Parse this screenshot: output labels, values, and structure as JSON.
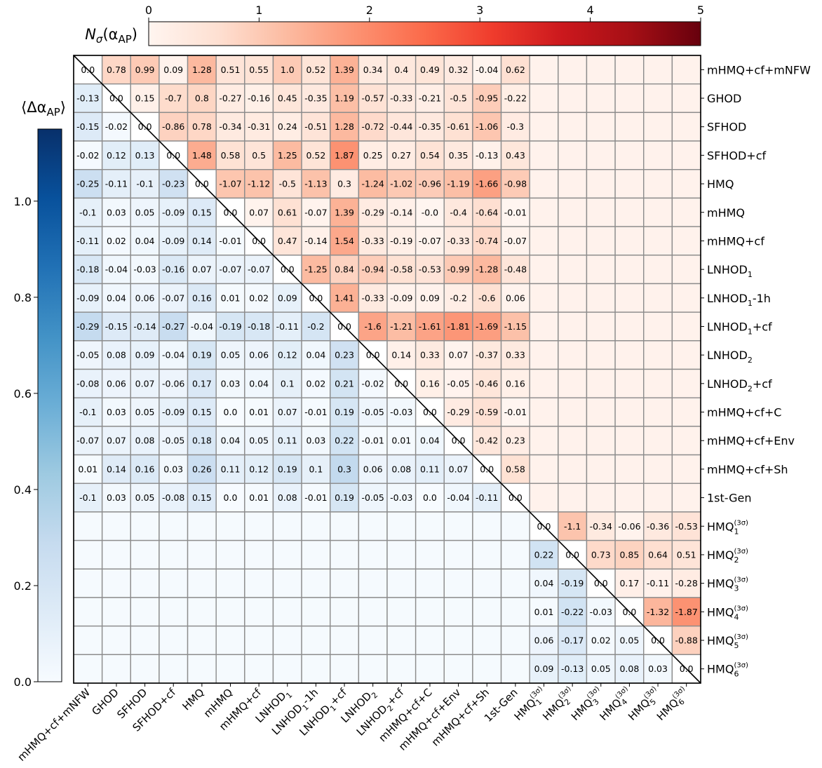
{
  "chart_data": {
    "type": "heatmap",
    "labels": [
      "mHMQ+cf+mNFW",
      "GHOD",
      "SFHOD",
      "SFHOD+cf",
      "HMQ",
      "mHMQ",
      "mHMQ+cf",
      "LNHOD₁",
      "LNHOD₁-1h",
      "LNHOD₁+cf",
      "LNHOD₂",
      "LNHOD₂+cf",
      "mHMQ+cf+C",
      "mHMQ+cf+Env",
      "mHMQ+cf+Sh",
      "1st-Gen",
      "HMQ₁⁽³ᵟ⁾",
      "HMQ₂⁽³ᵟ⁾",
      "HMQ₃⁽³ᵟ⁾",
      "HMQ₄⁽³ᵟ⁾",
      "HMQ₅⁽³ᵟ⁾",
      "HMQ₆⁽³ᵟ⁾"
    ],
    "labels_rich": [
      {
        "base": "mHMQ+cf+mNFW",
        "sub": "",
        "sup": "",
        "suffix": ""
      },
      {
        "base": "GHOD",
        "sub": "",
        "sup": "",
        "suffix": ""
      },
      {
        "base": "SFHOD",
        "sub": "",
        "sup": "",
        "suffix": ""
      },
      {
        "base": "SFHOD+cf",
        "sub": "",
        "sup": "",
        "suffix": ""
      },
      {
        "base": "HMQ",
        "sub": "",
        "sup": "",
        "suffix": ""
      },
      {
        "base": "mHMQ",
        "sub": "",
        "sup": "",
        "suffix": ""
      },
      {
        "base": "mHMQ+cf",
        "sub": "",
        "sup": "",
        "suffix": ""
      },
      {
        "base": "LNHOD",
        "sub": "1",
        "sup": "",
        "suffix": ""
      },
      {
        "base": "LNHOD",
        "sub": "1",
        "sup": "",
        "suffix": "-1h"
      },
      {
        "base": "LNHOD",
        "sub": "1",
        "sup": "",
        "suffix": "+cf"
      },
      {
        "base": "LNHOD",
        "sub": "2",
        "sup": "",
        "suffix": ""
      },
      {
        "base": "LNHOD",
        "sub": "2",
        "sup": "",
        "suffix": "+cf"
      },
      {
        "base": "mHMQ+cf+C",
        "sub": "",
        "sup": "",
        "suffix": ""
      },
      {
        "base": "mHMQ+cf+Env",
        "sub": "",
        "sup": "",
        "suffix": ""
      },
      {
        "base": "mHMQ+cf+Sh",
        "sub": "",
        "sup": "",
        "suffix": ""
      },
      {
        "base": "1st-Gen",
        "sub": "",
        "sup": "",
        "suffix": ""
      },
      {
        "base": "HMQ",
        "sub": "1",
        "sup": "(3σ)",
        "suffix": ""
      },
      {
        "base": "HMQ",
        "sub": "2",
        "sup": "(3σ)",
        "suffix": ""
      },
      {
        "base": "HMQ",
        "sub": "3",
        "sup": "(3σ)",
        "suffix": ""
      },
      {
        "base": "HMQ",
        "sub": "4",
        "sup": "(3σ)",
        "suffix": ""
      },
      {
        "base": "HMQ",
        "sub": "5",
        "sup": "(3σ)",
        "suffix": ""
      },
      {
        "base": "HMQ",
        "sub": "6",
        "sup": "(3σ)",
        "suffix": ""
      }
    ],
    "upper_title": "Nσ(αAP)",
    "upper_title_rich": {
      "base": "N",
      "base_sub": "σ",
      "open": "(α",
      "sub": "AP",
      "close": ")"
    },
    "upper_ticks": [
      0,
      1,
      2,
      3,
      4,
      5
    ],
    "upper_range": [
      0,
      5
    ],
    "upper_colormap": "Reds",
    "lower_title": "⟨ΔαAP⟩",
    "lower_title_rich": {
      "open": "⟨Δα",
      "sub": "AP",
      "close": "⟩"
    },
    "lower_ticks": [
      "0.0",
      "0.2",
      "0.4",
      "0.6",
      "0.8",
      "1.0"
    ],
    "lower_range": [
      0,
      1.15
    ],
    "lower_colormap": "Blues",
    "grid": true,
    "diagonal_line": true,
    "rows": [
      [
        "0.0",
        "0.78",
        "0.99",
        "0.09",
        "1.28",
        "0.51",
        "0.55",
        "1.0",
        "0.52",
        "1.39",
        "0.34",
        "0.4",
        "0.49",
        "0.32",
        "-0.04",
        "0.62",
        "",
        "",
        "",
        "",
        "",
        ""
      ],
      [
        "-0.13",
        "0.0",
        "0.15",
        "-0.7",
        "0.8",
        "-0.27",
        "-0.16",
        "0.45",
        "-0.35",
        "1.19",
        "-0.57",
        "-0.33",
        "-0.21",
        "-0.5",
        "-0.95",
        "-0.22",
        "",
        "",
        "",
        "",
        "",
        ""
      ],
      [
        "-0.15",
        "-0.02",
        "0.0",
        "-0.86",
        "0.78",
        "-0.34",
        "-0.31",
        "0.24",
        "-0.51",
        "1.28",
        "-0.72",
        "-0.44",
        "-0.35",
        "-0.61",
        "-1.06",
        "-0.3",
        "",
        "",
        "",
        "",
        "",
        ""
      ],
      [
        "-0.02",
        "0.12",
        "0.13",
        "0.0",
        "1.48",
        "0.58",
        "0.5",
        "1.25",
        "0.52",
        "1.87",
        "0.25",
        "0.27",
        "0.54",
        "0.35",
        "-0.13",
        "0.43",
        "",
        "",
        "",
        "",
        "",
        ""
      ],
      [
        "-0.25",
        "-0.11",
        "-0.1",
        "-0.23",
        "0.0",
        "-1.07",
        "-1.12",
        "-0.5",
        "-1.13",
        "0.3",
        "-1.24",
        "-1.02",
        "-0.96",
        "-1.19",
        "-1.66",
        "-0.98",
        "",
        "",
        "",
        "",
        "",
        ""
      ],
      [
        "-0.1",
        "0.03",
        "0.05",
        "-0.09",
        "0.15",
        "0.0",
        "0.07",
        "0.61",
        "-0.07",
        "1.39",
        "-0.29",
        "-0.14",
        "-0.0",
        "-0.4",
        "-0.64",
        "-0.01",
        "",
        "",
        "",
        "",
        "",
        ""
      ],
      [
        "-0.11",
        "0.02",
        "0.04",
        "-0.09",
        "0.14",
        "-0.01",
        "0.0",
        "0.47",
        "-0.14",
        "1.54",
        "-0.33",
        "-0.19",
        "-0.07",
        "-0.33",
        "-0.74",
        "-0.07",
        "",
        "",
        "",
        "",
        "",
        ""
      ],
      [
        "-0.18",
        "-0.04",
        "-0.03",
        "-0.16",
        "0.07",
        "-0.07",
        "-0.07",
        "0.0",
        "-1.25",
        "0.84",
        "-0.94",
        "-0.58",
        "-0.53",
        "-0.99",
        "-1.28",
        "-0.48",
        "",
        "",
        "",
        "",
        "",
        ""
      ],
      [
        "-0.09",
        "0.04",
        "0.06",
        "-0.07",
        "0.16",
        "0.01",
        "0.02",
        "0.09",
        "0.0",
        "1.41",
        "-0.33",
        "-0.09",
        "0.09",
        "-0.2",
        "-0.6",
        "0.06",
        "",
        "",
        "",
        "",
        "",
        ""
      ],
      [
        "-0.29",
        "-0.15",
        "-0.14",
        "-0.27",
        "-0.04",
        "-0.19",
        "-0.18",
        "-0.11",
        "-0.2",
        "0.0",
        "-1.6",
        "-1.21",
        "-1.61",
        "-1.81",
        "-1.69",
        "-1.15",
        "",
        "",
        "",
        "",
        "",
        ""
      ],
      [
        "-0.05",
        "0.08",
        "0.09",
        "-0.04",
        "0.19",
        "0.05",
        "0.06",
        "0.12",
        "0.04",
        "0.23",
        "0.0",
        "0.14",
        "0.33",
        "0.07",
        "-0.37",
        "0.33",
        "",
        "",
        "",
        "",
        "",
        ""
      ],
      [
        "-0.08",
        "0.06",
        "0.07",
        "-0.06",
        "0.17",
        "0.03",
        "0.04",
        "0.1",
        "0.02",
        "0.21",
        "-0.02",
        "0.0",
        "0.16",
        "-0.05",
        "-0.46",
        "0.16",
        "",
        "",
        "",
        "",
        "",
        ""
      ],
      [
        "-0.1",
        "0.03",
        "0.05",
        "-0.09",
        "0.15",
        "0.0",
        "0.01",
        "0.07",
        "-0.01",
        "0.19",
        "-0.05",
        "-0.03",
        "0.0",
        "-0.29",
        "-0.59",
        "-0.01",
        "",
        "",
        "",
        "",
        "",
        ""
      ],
      [
        "-0.07",
        "0.07",
        "0.08",
        "-0.05",
        "0.18",
        "0.04",
        "0.05",
        "0.11",
        "0.03",
        "0.22",
        "-0.01",
        "0.01",
        "0.04",
        "0.0",
        "-0.42",
        "0.23",
        "",
        "",
        "",
        "",
        "",
        ""
      ],
      [
        "0.01",
        "0.14",
        "0.16",
        "0.03",
        "0.26",
        "0.11",
        "0.12",
        "0.19",
        "0.1",
        "0.3",
        "0.06",
        "0.08",
        "0.11",
        "0.07",
        "0.0",
        "0.58",
        "",
        "",
        "",
        "",
        "",
        ""
      ],
      [
        "-0.1",
        "0.03",
        "0.05",
        "-0.08",
        "0.15",
        "0.0",
        "0.01",
        "0.08",
        "-0.01",
        "0.19",
        "-0.05",
        "-0.03",
        "0.0",
        "-0.04",
        "-0.11",
        "0.0",
        "",
        "",
        "",
        "",
        "",
        ""
      ],
      [
        "",
        "",
        "",
        "",
        "",
        "",
        "",
        "",
        "",
        "",
        "",
        "",
        "",
        "",
        "",
        "",
        "0.0",
        "-1.1",
        "-0.34",
        "-0.06",
        "-0.36",
        "-0.53"
      ],
      [
        "",
        "",
        "",
        "",
        "",
        "",
        "",
        "",
        "",
        "",
        "",
        "",
        "",
        "",
        "",
        "",
        "0.22",
        "0.0",
        "0.73",
        "0.85",
        "0.64",
        "0.51"
      ],
      [
        "",
        "",
        "",
        "",
        "",
        "",
        "",
        "",
        "",
        "",
        "",
        "",
        "",
        "",
        "",
        "",
        "0.04",
        "-0.19",
        "0.0",
        "0.17",
        "-0.11",
        "-0.28"
      ],
      [
        "",
        "",
        "",
        "",
        "",
        "",
        "",
        "",
        "",
        "",
        "",
        "",
        "",
        "",
        "",
        "",
        "0.01",
        "-0.22",
        "-0.03",
        "0.0",
        "-1.32",
        "-1.87"
      ],
      [
        "",
        "",
        "",
        "",
        "",
        "",
        "",
        "",
        "",
        "",
        "",
        "",
        "",
        "",
        "",
        "",
        "0.06",
        "-0.17",
        "0.02",
        "0.05",
        "0.0",
        "-0.88"
      ],
      [
        "",
        "",
        "",
        "",
        "",
        "",
        "",
        "",
        "",
        "",
        "",
        "",
        "",
        "",
        "",
        "",
        "0.09",
        "-0.13",
        "0.05",
        "0.08",
        "0.03",
        "0.0"
      ]
    ]
  }
}
